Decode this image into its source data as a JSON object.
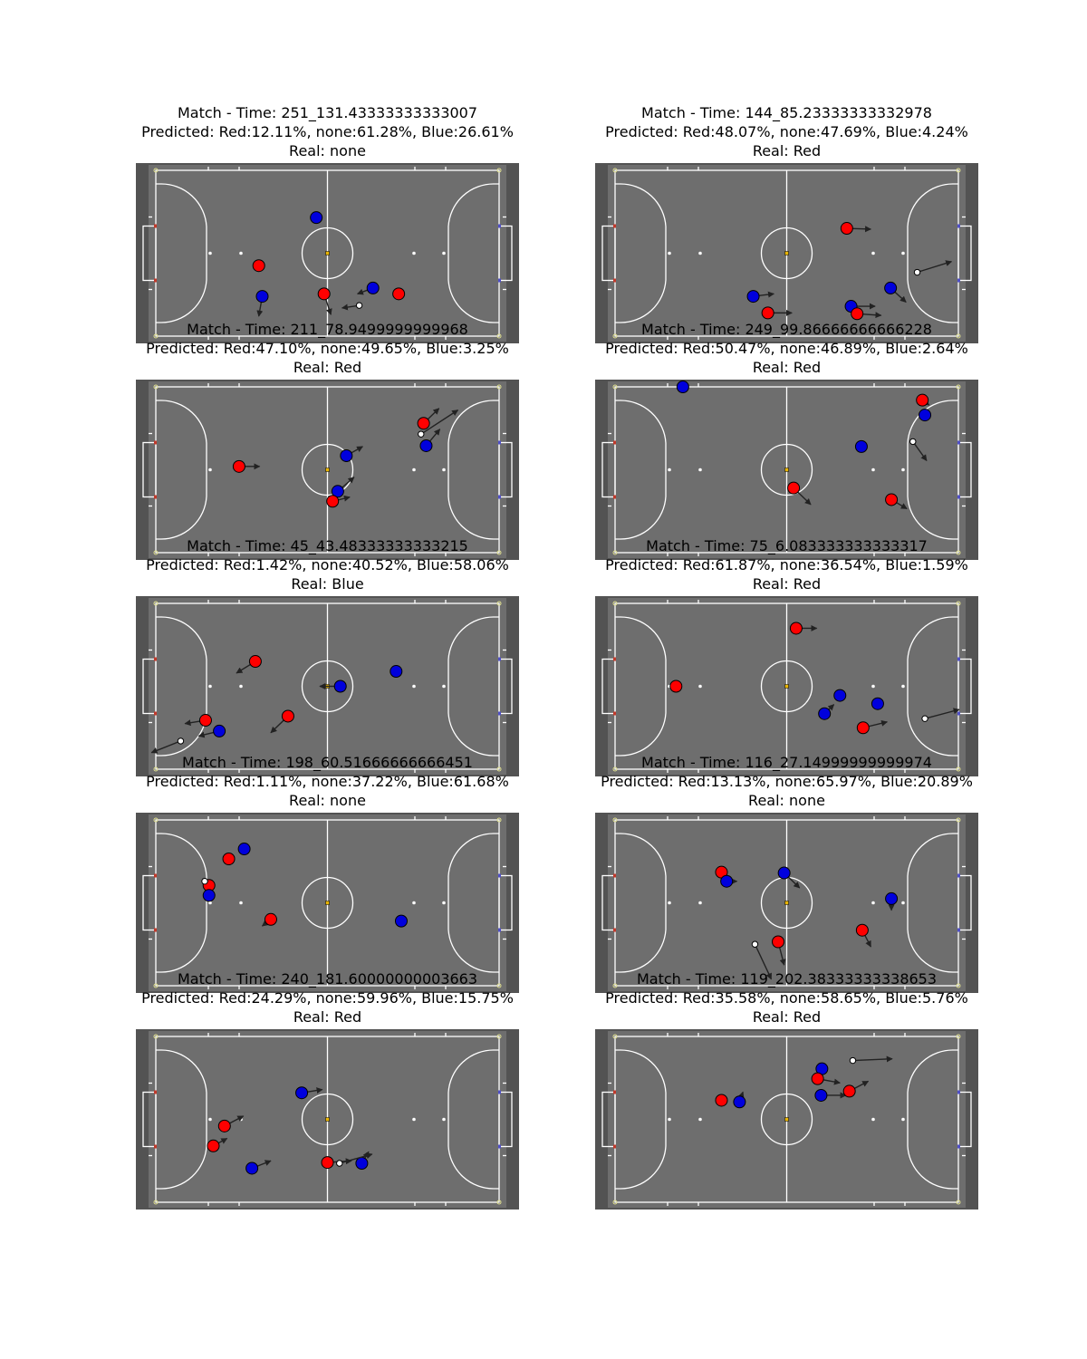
{
  "colors": {
    "pitch_surface": "#6e6e6e",
    "pitch_border": "#535353",
    "lines": "#ffffff",
    "red_team": "#ff0000",
    "blue_team": "#0000dd",
    "ball": "#ffffff",
    "arrow": "#222222"
  },
  "panels": [
    {
      "title": "Match - Time: 251_131.43333333333007",
      "predicted": "Predicted: Red:12.11%, none:61.28%, Blue:26.61%",
      "real": "Real: none",
      "chart_data": {
        "type": "scatter",
        "xlim": [
          0,
          40
        ],
        "ylim": [
          0,
          20
        ],
        "players": [
          {
            "team": "blue",
            "x": 18.7,
            "y": 14.3,
            "dx": 0,
            "dy": 0
          },
          {
            "team": "red",
            "x": 12.0,
            "y": 8.5,
            "dx": 0.0,
            "dy": -0.6
          },
          {
            "team": "blue",
            "x": 12.4,
            "y": 4.8,
            "dx": -0.4,
            "dy": -2.4
          },
          {
            "team": "red",
            "x": 19.6,
            "y": 5.1,
            "dx": 0.8,
            "dy": -2.5
          },
          {
            "team": "blue",
            "x": 25.3,
            "y": 5.8,
            "dx": -1.8,
            "dy": -0.7
          },
          {
            "team": "red",
            "x": 28.3,
            "y": 5.1,
            "dx": 0,
            "dy": 0
          }
        ],
        "ball": {
          "x": 23.7,
          "y": 3.7,
          "dx": -2.0,
          "dy": -0.3
        }
      }
    },
    {
      "title": "Match - Time: 144_85.23333333332978",
      "predicted": "Predicted: Red:48.07%, none:47.69%, Blue:4.24%",
      "real": "Real: Red",
      "chart_data": {
        "type": "scatter",
        "xlim": [
          0,
          40
        ],
        "ylim": [
          0,
          20
        ],
        "players": [
          {
            "team": "red",
            "x": 27.0,
            "y": 13.0,
            "dx": 2.8,
            "dy": -0.1
          },
          {
            "team": "blue",
            "x": 32.1,
            "y": 5.8,
            "dx": 1.8,
            "dy": -1.7
          },
          {
            "team": "blue",
            "x": 16.1,
            "y": 4.8,
            "dx": 2.4,
            "dy": 0.3
          },
          {
            "team": "red",
            "x": 17.8,
            "y": 2.8,
            "dx": 2.8,
            "dy": 0.0
          },
          {
            "team": "blue",
            "x": 27.5,
            "y": 3.6,
            "dx": 2.8,
            "dy": 0.0
          },
          {
            "team": "red",
            "x": 28.2,
            "y": 2.7,
            "dx": 2.8,
            "dy": -0.2
          }
        ],
        "ball": {
          "x": 35.2,
          "y": 7.7,
          "dx": 4.0,
          "dy": 1.3
        }
      }
    },
    {
      "title": "Match - Time: 211_78.9499999999968",
      "predicted": "Predicted: Red:47.10%, none:49.65%, Blue:3.25%",
      "real": "Real: Red",
      "chart_data": {
        "type": "scatter",
        "xlim": [
          0,
          40
        ],
        "ylim": [
          0,
          20
        ],
        "players": [
          {
            "team": "red",
            "x": 31.2,
            "y": 15.6,
            "dx": 1.8,
            "dy": 1.8
          },
          {
            "team": "blue",
            "x": 31.5,
            "y": 12.9,
            "dx": 1.6,
            "dy": 2.0
          },
          {
            "team": "red",
            "x": 9.7,
            "y": 10.4,
            "dx": 2.4,
            "dy": 0.0
          },
          {
            "team": "blue",
            "x": 22.2,
            "y": 11.7,
            "dx": 1.9,
            "dy": 1.1
          },
          {
            "team": "blue",
            "x": 21.2,
            "y": 7.4,
            "dx": 1.9,
            "dy": 1.7
          },
          {
            "team": "red",
            "x": 20.6,
            "y": 6.2,
            "dx": 2.0,
            "dy": 0.5
          }
        ],
        "ball": {
          "x": 30.9,
          "y": 14.3,
          "dx": 4.3,
          "dy": 2.9
        }
      }
    },
    {
      "title": "Match - Time: 249_99.86666666666228",
      "predicted": "Predicted: Red:50.47%, none:46.89%, Blue:2.64%",
      "real": "Real: Red",
      "chart_data": {
        "type": "scatter",
        "xlim": [
          0,
          40
        ],
        "ylim": [
          0,
          20
        ],
        "players": [
          {
            "team": "blue",
            "x": 7.9,
            "y": 20.0,
            "dx": 0,
            "dy": 0
          },
          {
            "team": "red",
            "x": 35.8,
            "y": 18.4,
            "dx": 0.8,
            "dy": -0.6
          },
          {
            "team": "blue",
            "x": 36.1,
            "y": 16.6,
            "dx": 0,
            "dy": 0
          },
          {
            "team": "blue",
            "x": 28.7,
            "y": 12.8,
            "dx": 0,
            "dy": 0
          },
          {
            "team": "red",
            "x": 20.8,
            "y": 7.8,
            "dx": 2.0,
            "dy": -2.0
          },
          {
            "team": "red",
            "x": 32.2,
            "y": 6.4,
            "dx": 1.8,
            "dy": -1.1
          }
        ],
        "ball": {
          "x": 34.7,
          "y": 13.4,
          "dx": 1.6,
          "dy": -2.3
        }
      }
    },
    {
      "title": "Match - Time: 45_43.48333333333215",
      "predicted": "Predicted: Red:1.42%, none:40.52%, Blue:58.06%",
      "real": "Real: Blue",
      "chart_data": {
        "type": "scatter",
        "xlim": [
          0,
          40
        ],
        "ylim": [
          0,
          20
        ],
        "players": [
          {
            "team": "red",
            "x": 11.6,
            "y": 13.0,
            "dx": -2.2,
            "dy": -1.4
          },
          {
            "team": "blue",
            "x": 21.5,
            "y": 10.0,
            "dx": -2.4,
            "dy": 0.0
          },
          {
            "team": "blue",
            "x": 28.0,
            "y": 11.8,
            "dx": 0,
            "dy": 0
          },
          {
            "team": "red",
            "x": 5.8,
            "y": 5.9,
            "dx": -2.4,
            "dy": -0.4
          },
          {
            "team": "blue",
            "x": 7.4,
            "y": 4.6,
            "dx": -2.4,
            "dy": -0.6
          },
          {
            "team": "red",
            "x": 15.4,
            "y": 6.4,
            "dx": -2.0,
            "dy": -2.0
          }
        ],
        "ball": {
          "x": 2.9,
          "y": 3.4,
          "dx": -3.4,
          "dy": -1.4
        }
      }
    },
    {
      "title": "Match - Time: 75_6.083333333333317",
      "predicted": "Predicted: Red:61.87%, none:36.54%, Blue:1.59%",
      "real": "Red",
      "real_label": "Real: Red",
      "chart_data": {
        "type": "scatter",
        "xlim": [
          0,
          40
        ],
        "ylim": [
          0,
          20
        ],
        "players": [
          {
            "team": "red",
            "x": 21.1,
            "y": 17.0,
            "dx": 2.4,
            "dy": 0.0
          },
          {
            "team": "red",
            "x": 7.1,
            "y": 10.0,
            "dx": 0,
            "dy": 0
          },
          {
            "team": "blue",
            "x": 26.2,
            "y": 8.9,
            "dx": 0,
            "dy": 0
          },
          {
            "team": "blue",
            "x": 30.6,
            "y": 7.9,
            "dx": 0,
            "dy": 0
          },
          {
            "team": "blue",
            "x": 24.4,
            "y": 6.7,
            "dx": 1.1,
            "dy": 1.1
          },
          {
            "team": "red",
            "x": 28.9,
            "y": 5.0,
            "dx": 2.8,
            "dy": 0.7
          }
        ],
        "ball": {
          "x": 36.1,
          "y": 6.1,
          "dx": 4.0,
          "dy": 1.1
        }
      }
    },
    {
      "title": "Match - Time: 198_60.51666666666451",
      "predicted": "Predicted: Red:1.11%, none:37.22%, Blue:61.68%",
      "real": "Real: none",
      "chart_data": {
        "type": "scatter",
        "xlim": [
          0,
          40
        ],
        "ylim": [
          0,
          20
        ],
        "players": [
          {
            "team": "blue",
            "x": 10.3,
            "y": 16.5,
            "dx": 0,
            "dy": 0
          },
          {
            "team": "red",
            "x": 8.5,
            "y": 15.3,
            "dx": 0,
            "dy": 0
          },
          {
            "team": "red",
            "x": 6.2,
            "y": 12.1,
            "dx": -0.6,
            "dy": 0.4
          },
          {
            "team": "blue",
            "x": 6.2,
            "y": 10.9,
            "dx": 0,
            "dy": 0
          },
          {
            "team": "red",
            "x": 13.4,
            "y": 8.0,
            "dx": -1.0,
            "dy": -0.8
          },
          {
            "team": "blue",
            "x": 28.6,
            "y": 7.8,
            "dx": 0,
            "dy": 0
          }
        ],
        "ball": {
          "x": 5.7,
          "y": 12.6,
          "dx": 0.4,
          "dy": 0.0
        }
      }
    },
    {
      "title": "Match - Time: 116_27.14999999999974",
      "predicted": "Predicted: Red:13.13%, none:65.97%, Blue:20.89%",
      "real": "Real: none",
      "chart_data": {
        "type": "scatter",
        "xlim": [
          0,
          40
        ],
        "ylim": [
          0,
          20
        ],
        "players": [
          {
            "team": "red",
            "x": 12.4,
            "y": 13.7,
            "dx": 0.8,
            "dy": -0.6
          },
          {
            "team": "blue",
            "x": 13.0,
            "y": 12.6,
            "dx": 1.2,
            "dy": 0.0
          },
          {
            "team": "blue",
            "x": 19.7,
            "y": 13.6,
            "dx": 1.8,
            "dy": -1.8
          },
          {
            "team": "blue",
            "x": 32.2,
            "y": 10.5,
            "dx": 0.0,
            "dy": -1.4
          },
          {
            "team": "red",
            "x": 28.8,
            "y": 6.7,
            "dx": 1.0,
            "dy": -2.0
          },
          {
            "team": "red",
            "x": 19.0,
            "y": 5.3,
            "dx": 0.7,
            "dy": -2.8
          }
        ],
        "ball": {
          "x": 16.3,
          "y": 5.0,
          "dx": 1.9,
          "dy": -4.2
        }
      }
    },
    {
      "title": "Match - Time: 240_181.60000000003663",
      "predicted": "Predicted: Red:24.29%, none:59.96%, Blue:15.75%",
      "real": "Real: Red",
      "chart_data": {
        "type": "scatter",
        "xlim": [
          0,
          40
        ],
        "ylim": [
          0,
          20
        ],
        "players": [
          {
            "team": "blue",
            "x": 17.0,
            "y": 13.2,
            "dx": 2.4,
            "dy": 0.4
          },
          {
            "team": "red",
            "x": 8.0,
            "y": 9.2,
            "dx": 2.2,
            "dy": 1.2
          },
          {
            "team": "red",
            "x": 6.7,
            "y": 6.8,
            "dx": 1.6,
            "dy": 0.9
          },
          {
            "team": "blue",
            "x": 11.2,
            "y": 4.1,
            "dx": 2.2,
            "dy": 0.9
          },
          {
            "team": "red",
            "x": 20.0,
            "y": 4.8,
            "dx": 2.8,
            "dy": 0.2
          },
          {
            "team": "blue",
            "x": 24.0,
            "y": 4.7,
            "dx": 0.8,
            "dy": 1.4
          }
        ],
        "ball": {
          "x": 21.4,
          "y": 4.7,
          "dx": 3.8,
          "dy": 1.1
        }
      }
    },
    {
      "title": "Match - Time: 119_202.38333333338653",
      "predicted": "Predicted: Red:35.58%, none:58.65%, Blue:5.76%",
      "real": "Real: Red",
      "chart_data": {
        "type": "scatter",
        "xlim": [
          0,
          40
        ],
        "ylim": [
          0,
          20
        ],
        "players": [
          {
            "team": "blue",
            "x": 24.1,
            "y": 16.1,
            "dx": 0,
            "dy": 0
          },
          {
            "team": "red",
            "x": 23.6,
            "y": 14.9,
            "dx": 2.6,
            "dy": -0.5
          },
          {
            "team": "blue",
            "x": 24.0,
            "y": 12.9,
            "dx": 2.9,
            "dy": 0.0
          },
          {
            "team": "red",
            "x": 27.3,
            "y": 13.4,
            "dx": 2.2,
            "dy": 1.2
          },
          {
            "team": "red",
            "x": 12.4,
            "y": 12.3,
            "dx": 0.0,
            "dy": 0.5
          },
          {
            "team": "blue",
            "x": 14.5,
            "y": 12.1,
            "dx": 0.4,
            "dy": 1.2
          }
        ],
        "ball": {
          "x": 27.7,
          "y": 17.1,
          "dx": 4.6,
          "dy": 0.2
        }
      }
    }
  ]
}
